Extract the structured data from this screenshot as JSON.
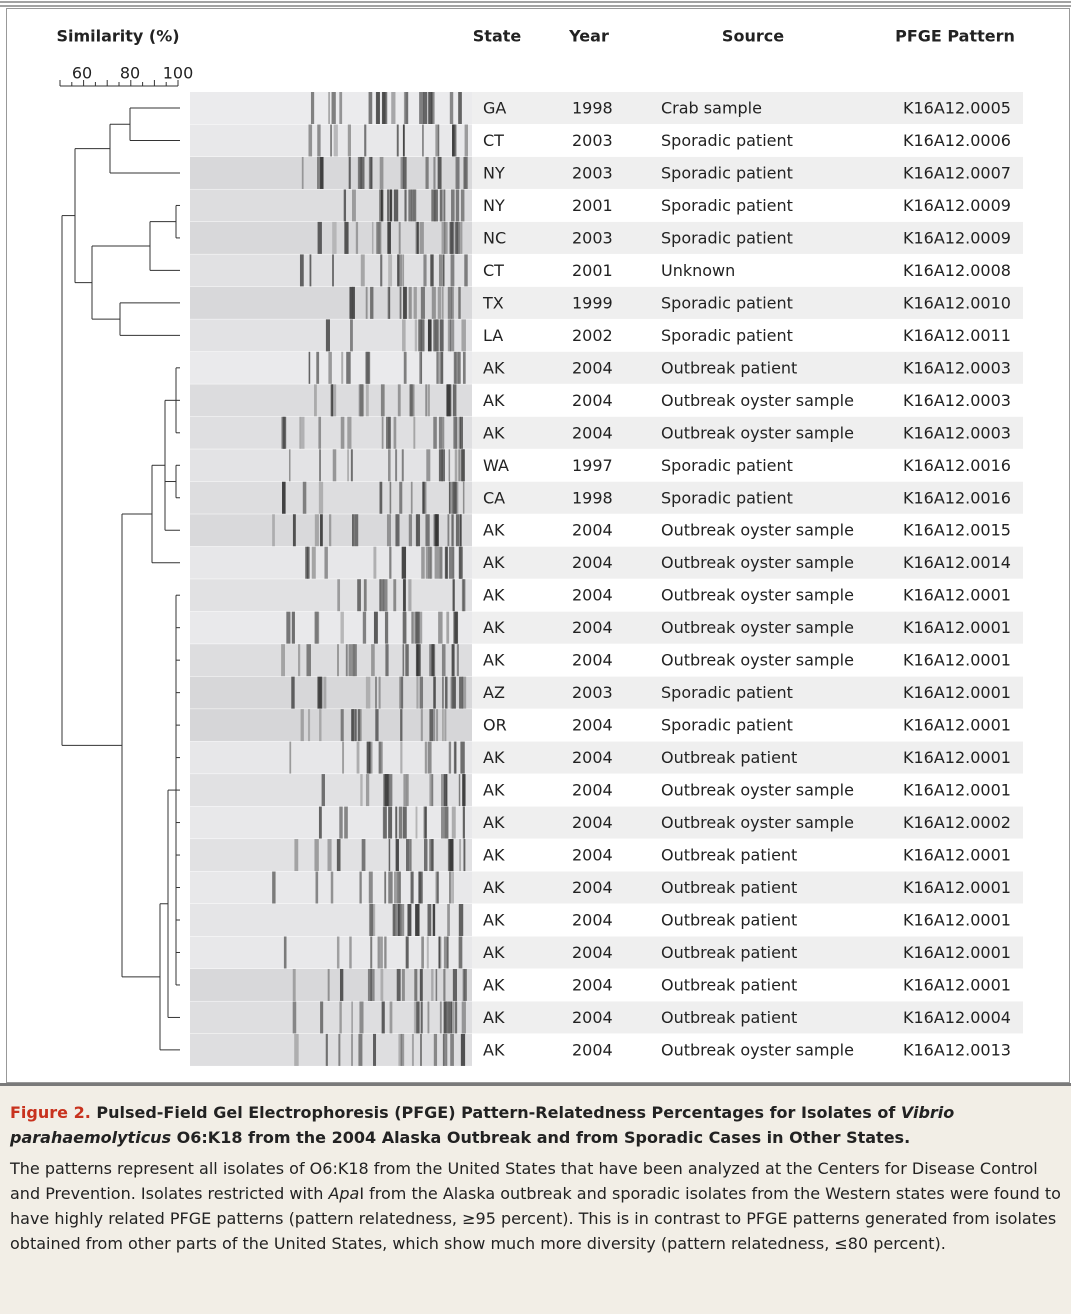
{
  "header": {
    "similarity": "Similarity (%)",
    "scale_ticks": [
      60,
      80,
      100
    ]
  },
  "columns": [
    "State",
    "Year",
    "Source",
    "PFGE Pattern"
  ],
  "rows": [
    [
      "GA",
      1998,
      "Crab sample",
      "K16A12.0005"
    ],
    [
      "CT",
      2003,
      "Sporadic patient",
      "K16A12.0006"
    ],
    [
      "NY",
      2003,
      "Sporadic patient",
      "K16A12.0007"
    ],
    [
      "NY",
      2001,
      "Sporadic patient",
      "K16A12.0009"
    ],
    [
      "NC",
      2003,
      "Sporadic patient",
      "K16A12.0009"
    ],
    [
      "CT",
      2001,
      "Unknown",
      "K16A12.0008"
    ],
    [
      "TX",
      1999,
      "Sporadic patient",
      "K16A12.0010"
    ],
    [
      "LA",
      2002,
      "Sporadic patient",
      "K16A12.0011"
    ],
    [
      "AK",
      2004,
      "Outbreak patient",
      "K16A12.0003"
    ],
    [
      "AK",
      2004,
      "Outbreak oyster sample",
      "K16A12.0003"
    ],
    [
      "AK",
      2004,
      "Outbreak oyster sample",
      "K16A12.0003"
    ],
    [
      "WA",
      1997,
      "Sporadic patient",
      "K16A12.0016"
    ],
    [
      "CA",
      1998,
      "Sporadic patient",
      "K16A12.0016"
    ],
    [
      "AK",
      2004,
      "Outbreak oyster sample",
      "K16A12.0015"
    ],
    [
      "AK",
      2004,
      "Outbreak oyster sample",
      "K16A12.0014"
    ],
    [
      "AK",
      2004,
      "Outbreak oyster sample",
      "K16A12.0001"
    ],
    [
      "AK",
      2004,
      "Outbreak oyster sample",
      "K16A12.0001"
    ],
    [
      "AK",
      2004,
      "Outbreak oyster sample",
      "K16A12.0001"
    ],
    [
      "AZ",
      2003,
      "Sporadic patient",
      "K16A12.0001"
    ],
    [
      "OR",
      2004,
      "Sporadic patient",
      "K16A12.0001"
    ],
    [
      "AK",
      2004,
      "Outbreak patient",
      "K16A12.0001"
    ],
    [
      "AK",
      2004,
      "Outbreak oyster sample",
      "K16A12.0001"
    ],
    [
      "AK",
      2004,
      "Outbreak oyster sample",
      "K16A12.0002"
    ],
    [
      "AK",
      2004,
      "Outbreak patient",
      "K16A12.0001"
    ],
    [
      "AK",
      2004,
      "Outbreak patient",
      "K16A12.0001"
    ],
    [
      "AK",
      2004,
      "Outbreak patient",
      "K16A12.0001"
    ],
    [
      "AK",
      2004,
      "Outbreak patient",
      "K16A12.0001"
    ],
    [
      "AK",
      2004,
      "Outbreak patient",
      "K16A12.0001"
    ],
    [
      "AK",
      2004,
      "Outbreak patient",
      "K16A12.0004"
    ],
    [
      "AK",
      2004,
      "Outbreak oyster sample",
      "K16A12.0013"
    ]
  ],
  "caption": {
    "label": "Figure 2.",
    "title_1": "Pulsed-Field Gel Electrophoresis (PFGE) Pattern-Relatedness Percentages for Isolates of",
    "title_italic": "Vibrio parahaemolyticus",
    "title_2": "O6:K18 from the 2004 Alaska Outbreak and from Sporadic Cases in Other States.",
    "body_1": "The patterns represent all isolates of O6:K18 from the United States that have been analyzed at the Centers for Disease Control and Prevention. Isolates restricted with",
    "body_italic": "Apa",
    "body_2": "I from the Alaska outbreak and sporadic isolates from the Western states were found to have highly related PFGE patterns (pattern relatedness, ≥95 percent). This is in contrast to PFGE patterns generated from isolates obtained from other parts of the United States, which show much more diversity (pattern relatedness, ≤80 percent)."
  }
}
